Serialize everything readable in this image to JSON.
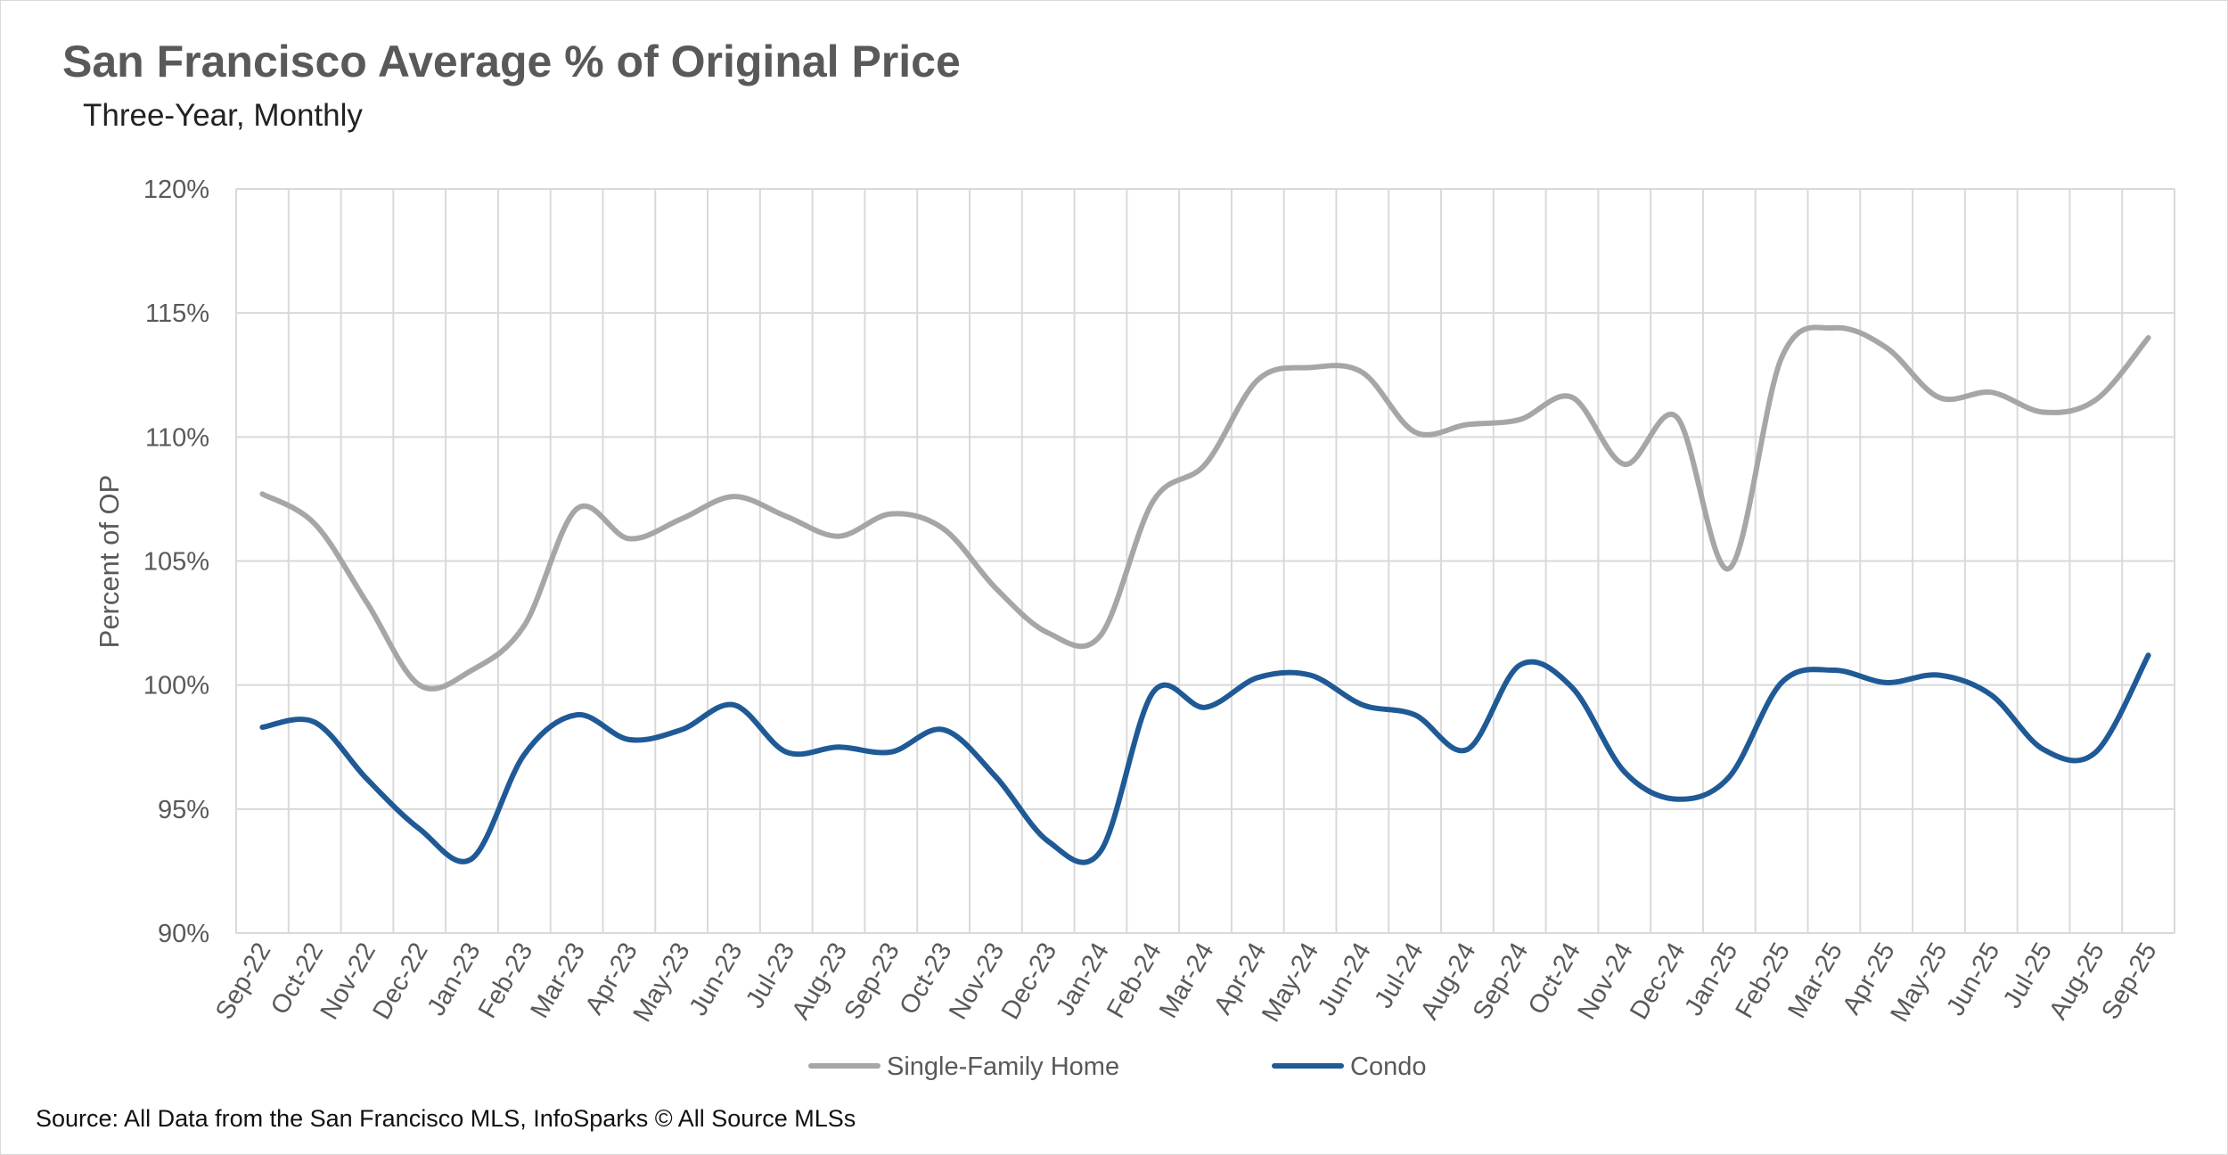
{
  "chart_data": {
    "type": "line",
    "title": "San Francisco Average % of Original Price",
    "subtitle": "Three-Year, Monthly",
    "xlabel": "",
    "ylabel": "Percent of OP",
    "ylim": [
      90,
      120
    ],
    "ytick_step": 5,
    "ytick_labels": [
      "90%",
      "95%",
      "100%",
      "105%",
      "110%",
      "115%",
      "120%"
    ],
    "grid": true,
    "legend_position": "bottom",
    "categories": [
      "Sep-22",
      "Oct-22",
      "Nov-22",
      "Dec-22",
      "Jan-23",
      "Feb-23",
      "Mar-23",
      "Apr-23",
      "May-23",
      "Jun-23",
      "Jul-23",
      "Aug-23",
      "Sep-23",
      "Oct-23",
      "Nov-23",
      "Dec-23",
      "Jan-24",
      "Feb-24",
      "Mar-24",
      "Apr-24",
      "May-24",
      "Jun-24",
      "Jul-24",
      "Aug-24",
      "Sep-24",
      "Oct-24",
      "Nov-24",
      "Dec-24",
      "Jan-25",
      "Feb-25",
      "Mar-25",
      "Apr-25",
      "May-25",
      "Jun-25",
      "Jul-25",
      "Aug-25",
      "Sep-25"
    ],
    "series": [
      {
        "name": "Single-Family Home",
        "color": "#A6A6A6",
        "values": [
          107.7,
          106.5,
          103.3,
          100.0,
          100.6,
          102.4,
          107.1,
          105.9,
          106.7,
          107.6,
          106.8,
          106.0,
          106.9,
          106.3,
          103.9,
          102.1,
          102.0,
          107.4,
          108.9,
          112.3,
          112.8,
          112.6,
          110.2,
          110.5,
          110.7,
          111.6,
          108.9,
          110.8,
          104.7,
          113.2,
          114.4,
          113.6,
          111.6,
          111.8,
          111.0,
          111.5,
          114.0
        ]
      },
      {
        "name": "Condo",
        "color": "#1F5A96",
        "values": [
          98.3,
          98.5,
          96.2,
          94.2,
          93.0,
          97.2,
          98.8,
          97.8,
          98.2,
          99.2,
          97.3,
          97.5,
          97.3,
          98.2,
          96.3,
          93.7,
          93.3,
          99.7,
          99.1,
          100.3,
          100.4,
          99.2,
          98.8,
          97.4,
          100.8,
          99.9,
          96.5,
          95.4,
          96.3,
          100.1,
          100.6,
          100.1,
          100.4,
          99.6,
          97.4,
          97.3,
          101.2
        ]
      }
    ]
  },
  "footer": {
    "source": "Source: All Data from the San Francisco MLS, InfoSparks © All Source MLSs"
  }
}
